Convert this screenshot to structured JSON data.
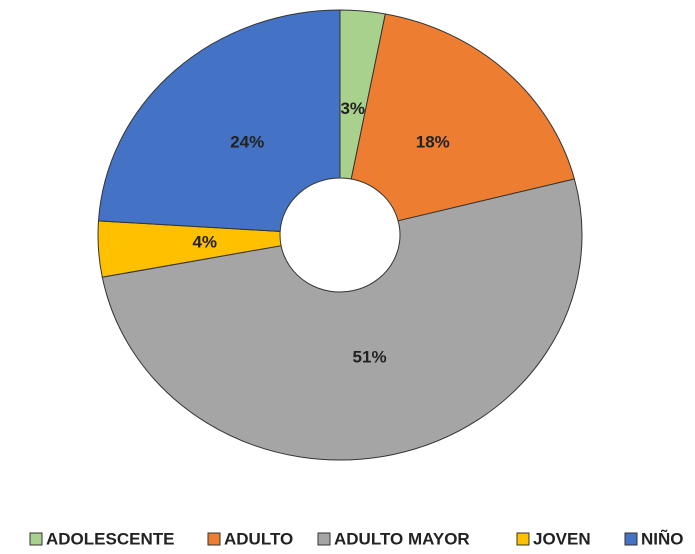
{
  "chart_data": {
    "type": "donut",
    "categories": [
      "ADOLESCENTE",
      "ADULTO",
      "ADULTO MAYOR",
      "JOVEN",
      "NIÑO"
    ],
    "values": [
      3,
      18,
      51,
      4,
      24
    ],
    "value_labels": [
      "3%",
      "18%",
      "51%",
      "4%",
      "24%"
    ],
    "colors": [
      "#a9d18e",
      "#ed7d31",
      "#a5a5a5",
      "#ffc000",
      "#4472c4"
    ],
    "legend": "bottom"
  }
}
